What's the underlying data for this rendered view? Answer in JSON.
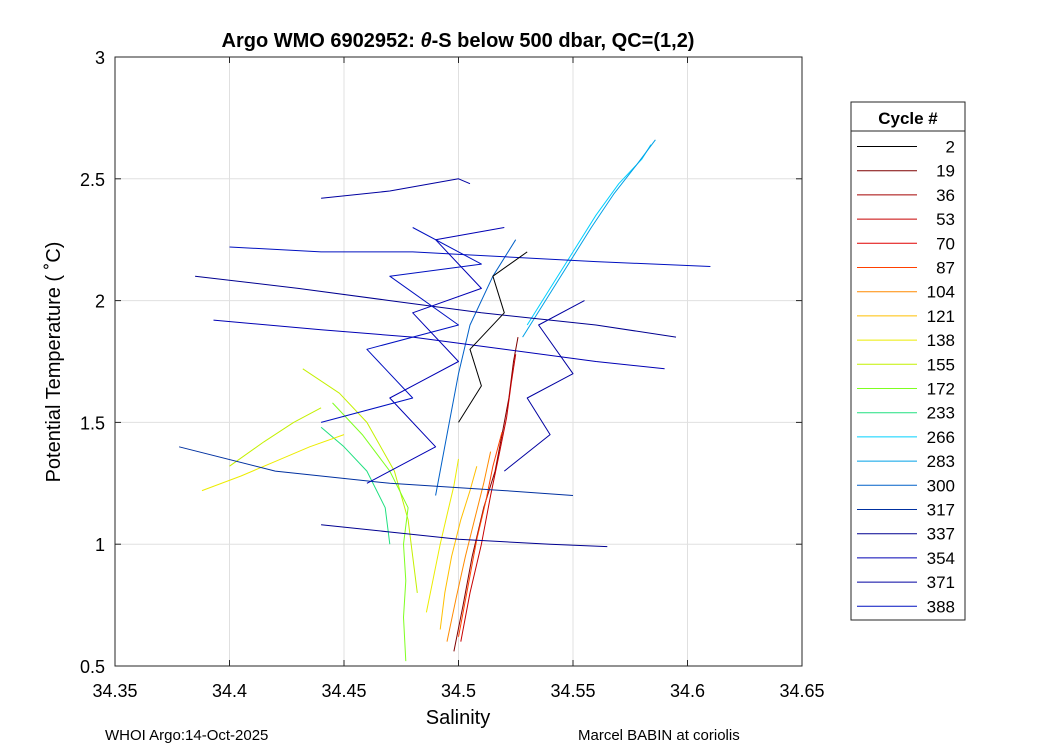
{
  "chart_data": {
    "type": "line",
    "title_prefix": "Argo WMO 6902952: ",
    "title_theta": "θ",
    "title_suffix": "-S below 500 dbar,  QC=(1,2)",
    "xlabel": "Salinity",
    "ylabel": "Potential Temperature ( ˚C)",
    "xlim": [
      34.35,
      34.65
    ],
    "ylim": [
      0.5,
      3
    ],
    "xticks": [
      34.35,
      34.4,
      34.45,
      34.5,
      34.55,
      34.6,
      34.65
    ],
    "xtick_labels": [
      "34.35",
      "34.4",
      "34.45",
      "34.5",
      "34.55",
      "34.6",
      "34.65"
    ],
    "yticks": [
      0.5,
      1,
      1.5,
      2,
      2.5,
      3
    ],
    "ytick_labels": [
      "0.5",
      "1",
      "1.5",
      "2",
      "2.5",
      "3"
    ],
    "grid": true,
    "legend_title": "Cycle #",
    "legend_position": "right",
    "legend": [
      {
        "label": "2",
        "color": "#000000"
      },
      {
        "label": "19",
        "color": "#7f0000"
      },
      {
        "label": "36",
        "color": "#a50000"
      },
      {
        "label": "53",
        "color": "#c80000"
      },
      {
        "label": "70",
        "color": "#e00000"
      },
      {
        "label": "87",
        "color": "#ff4000"
      },
      {
        "label": "104",
        "color": "#ff8a00"
      },
      {
        "label": "121",
        "color": "#ffbf00"
      },
      {
        "label": "138",
        "color": "#ecec00"
      },
      {
        "label": "155",
        "color": "#c4f000"
      },
      {
        "label": "172",
        "color": "#7fff20"
      },
      {
        "label": "233",
        "color": "#20e080"
      },
      {
        "label": "266",
        "color": "#00d0ff"
      },
      {
        "label": "283",
        "color": "#00a0e6"
      },
      {
        "label": "300",
        "color": "#0060c8"
      },
      {
        "label": "317",
        "color": "#0030a0"
      },
      {
        "label": "337",
        "color": "#000090"
      },
      {
        "label": "354",
        "color": "#0000b4"
      },
      {
        "label": "371",
        "color": "#0000a0"
      },
      {
        "label": "388",
        "color": "#0010c0"
      }
    ],
    "series": [
      {
        "color": "#7f0000",
        "points": [
          [
            34.498,
            0.56
          ],
          [
            34.502,
            0.75
          ],
          [
            34.506,
            0.95
          ],
          [
            34.511,
            1.15
          ],
          [
            34.516,
            1.3
          ],
          [
            34.519,
            1.45
          ],
          [
            34.522,
            1.6
          ],
          [
            34.524,
            1.75
          ],
          [
            34.526,
            1.85
          ]
        ]
      },
      {
        "color": "#c80000",
        "points": [
          [
            34.501,
            0.6
          ],
          [
            34.505,
            0.8
          ],
          [
            34.51,
            1.0
          ],
          [
            34.514,
            1.2
          ],
          [
            34.518,
            1.38
          ],
          [
            34.521,
            1.52
          ],
          [
            34.523,
            1.66
          ],
          [
            34.525,
            1.78
          ]
        ]
      },
      {
        "color": "#ff4000",
        "points": [
          [
            34.5,
            0.62
          ],
          [
            34.504,
            0.82
          ],
          [
            34.508,
            1.02
          ],
          [
            34.512,
            1.18
          ],
          [
            34.515,
            1.32
          ],
          [
            34.519,
            1.46
          ]
        ]
      },
      {
        "color": "#ff8a00",
        "points": [
          [
            34.495,
            0.6
          ],
          [
            34.499,
            0.78
          ],
          [
            34.503,
            0.95
          ],
          [
            34.507,
            1.1
          ],
          [
            34.511,
            1.25
          ],
          [
            34.514,
            1.38
          ]
        ]
      },
      {
        "color": "#ffbf00",
        "points": [
          [
            34.492,
            0.65
          ],
          [
            34.494,
            0.8
          ],
          [
            34.497,
            0.95
          ],
          [
            34.501,
            1.1
          ],
          [
            34.505,
            1.22
          ],
          [
            34.508,
            1.32
          ]
        ]
      },
      {
        "color": "#ecec00",
        "points": [
          [
            34.486,
            0.72
          ],
          [
            34.489,
            0.86
          ],
          [
            34.492,
            1.0
          ],
          [
            34.495,
            1.12
          ],
          [
            34.498,
            1.24
          ],
          [
            34.5,
            1.35
          ]
        ]
      },
      {
        "color": "#c4f000",
        "points": [
          [
            34.482,
            0.8
          ],
          [
            34.48,
            0.95
          ],
          [
            34.478,
            1.1
          ],
          [
            34.472,
            1.3
          ],
          [
            34.46,
            1.5
          ],
          [
            34.448,
            1.62
          ],
          [
            34.432,
            1.72
          ]
        ]
      },
      {
        "color": "#7fff20",
        "points": [
          [
            34.477,
            0.52
          ],
          [
            34.476,
            0.7
          ],
          [
            34.477,
            0.85
          ],
          [
            34.476,
            1.0
          ],
          [
            34.478,
            1.15
          ],
          [
            34.47,
            1.3
          ],
          [
            34.458,
            1.45
          ],
          [
            34.445,
            1.58
          ]
        ]
      },
      {
        "color": "#20e080",
        "points": [
          [
            34.47,
            1.0
          ],
          [
            34.468,
            1.15
          ],
          [
            34.46,
            1.3
          ],
          [
            34.45,
            1.4
          ],
          [
            34.44,
            1.48
          ]
        ]
      },
      {
        "color": "#ecec00",
        "points": [
          [
            34.388,
            1.22
          ],
          [
            34.405,
            1.28
          ],
          [
            34.42,
            1.34
          ],
          [
            34.435,
            1.4
          ],
          [
            34.45,
            1.45
          ]
        ]
      },
      {
        "color": "#c4f000",
        "points": [
          [
            34.4,
            1.32
          ],
          [
            34.415,
            1.42
          ],
          [
            34.428,
            1.5
          ],
          [
            34.44,
            1.56
          ]
        ]
      },
      {
        "color": "#00d0ff",
        "points": [
          [
            34.53,
            1.9
          ],
          [
            34.54,
            2.05
          ],
          [
            34.55,
            2.2
          ],
          [
            34.56,
            2.35
          ],
          [
            34.57,
            2.48
          ],
          [
            34.58,
            2.58
          ],
          [
            34.584,
            2.64
          ]
        ]
      },
      {
        "color": "#00a0e6",
        "points": [
          [
            34.528,
            1.85
          ],
          [
            34.538,
            2.0
          ],
          [
            34.548,
            2.15
          ],
          [
            34.558,
            2.3
          ],
          [
            34.568,
            2.44
          ],
          [
            34.578,
            2.56
          ],
          [
            34.586,
            2.66
          ]
        ]
      },
      {
        "color": "#0060c8",
        "points": [
          [
            34.49,
            1.2
          ],
          [
            34.495,
            1.45
          ],
          [
            34.5,
            1.7
          ],
          [
            34.505,
            1.9
          ],
          [
            34.515,
            2.1
          ],
          [
            34.525,
            2.25
          ]
        ]
      },
      {
        "color": "#0030a0",
        "points": [
          [
            34.378,
            1.4
          ],
          [
            34.42,
            1.3
          ],
          [
            34.47,
            1.25
          ],
          [
            34.52,
            1.22
          ],
          [
            34.55,
            1.2
          ]
        ]
      },
      {
        "color": "#000090",
        "points": [
          [
            34.385,
            2.1
          ],
          [
            34.43,
            2.05
          ],
          [
            34.47,
            2.0
          ],
          [
            34.51,
            1.95
          ],
          [
            34.56,
            1.9
          ],
          [
            34.595,
            1.85
          ]
        ]
      },
      {
        "color": "#0000b4",
        "points": [
          [
            34.393,
            1.92
          ],
          [
            34.44,
            1.88
          ],
          [
            34.48,
            1.85
          ],
          [
            34.52,
            1.8
          ],
          [
            34.56,
            1.75
          ],
          [
            34.59,
            1.72
          ]
        ]
      },
      {
        "color": "#0000a0",
        "points": [
          [
            34.44,
            2.42
          ],
          [
            34.47,
            2.45
          ],
          [
            34.5,
            2.5
          ],
          [
            34.505,
            2.48
          ]
        ]
      },
      {
        "color": "#0010c0",
        "points": [
          [
            34.4,
            2.22
          ],
          [
            34.44,
            2.2
          ],
          [
            34.48,
            2.2
          ],
          [
            34.52,
            2.18
          ],
          [
            34.56,
            2.16
          ],
          [
            34.61,
            2.14
          ]
        ]
      },
      {
        "color": "#000090",
        "points": [
          [
            34.44,
            1.08
          ],
          [
            34.47,
            1.05
          ],
          [
            34.5,
            1.02
          ],
          [
            34.54,
            1.0
          ],
          [
            34.565,
            0.99
          ]
        ]
      },
      {
        "color": "#0000b4",
        "points": [
          [
            34.46,
            1.25
          ],
          [
            34.49,
            1.4
          ],
          [
            34.47,
            1.6
          ],
          [
            34.5,
            1.75
          ],
          [
            34.48,
            1.95
          ],
          [
            34.51,
            2.05
          ],
          [
            34.49,
            2.25
          ],
          [
            34.52,
            2.3
          ]
        ]
      },
      {
        "color": "#0010c0",
        "points": [
          [
            34.44,
            1.5
          ],
          [
            34.48,
            1.6
          ],
          [
            34.46,
            1.8
          ],
          [
            34.5,
            1.9
          ],
          [
            34.47,
            2.1
          ],
          [
            34.51,
            2.15
          ],
          [
            34.48,
            2.3
          ]
        ]
      },
      {
        "color": "#0000a0",
        "points": [
          [
            34.52,
            1.3
          ],
          [
            34.54,
            1.45
          ],
          [
            34.53,
            1.6
          ],
          [
            34.55,
            1.7
          ],
          [
            34.535,
            1.9
          ],
          [
            34.555,
            2.0
          ]
        ]
      },
      {
        "color": "#000000",
        "points": [
          [
            34.5,
            1.5
          ],
          [
            34.51,
            1.65
          ],
          [
            34.505,
            1.8
          ],
          [
            34.52,
            1.95
          ],
          [
            34.515,
            2.1
          ],
          [
            34.53,
            2.2
          ]
        ]
      }
    ]
  },
  "footer": {
    "left": "WHOI Argo:14-Oct-2025",
    "right": "Marcel BABIN at coriolis"
  }
}
